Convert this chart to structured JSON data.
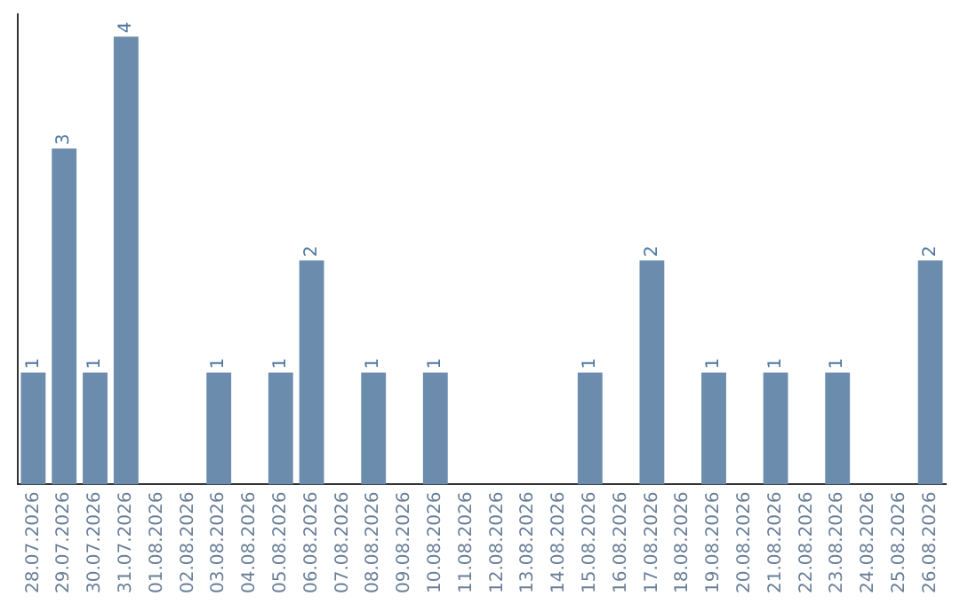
{
  "chart_data": {
    "type": "bar",
    "categories": [
      "28.07.2026",
      "29.07.2026",
      "30.07.2026",
      "31.07.2026",
      "01.08.2026",
      "02.08.2026",
      "03.08.2026",
      "04.08.2026",
      "05.08.2026",
      "06.08.2026",
      "07.08.2026",
      "08.08.2026",
      "09.08.2026",
      "10.08.2026",
      "11.08.2026",
      "12.08.2026",
      "13.08.2026",
      "14.08.2026",
      "15.08.2026",
      "16.08.2026",
      "17.08.2026",
      "18.08.2026",
      "19.08.2026",
      "20.08.2026",
      "21.08.2026",
      "22.08.2026",
      "23.08.2026",
      "24.08.2026",
      "25.08.2026",
      "26.08.2026"
    ],
    "values": [
      1,
      3,
      1,
      4,
      0,
      0,
      1,
      0,
      1,
      2,
      0,
      1,
      0,
      1,
      0,
      0,
      0,
      0,
      1,
      0,
      2,
      0,
      1,
      0,
      1,
      0,
      1,
      0,
      0,
      2
    ],
    "value_labels": [
      "1",
      "3",
      "1",
      "4",
      null,
      null,
      "1",
      null,
      "1",
      "2",
      null,
      "1",
      null,
      "1",
      null,
      null,
      null,
      null,
      "1",
      null,
      "2",
      null,
      "1",
      null,
      "1",
      null,
      "1",
      null,
      null,
      "2"
    ],
    "color": "#6b8cad",
    "ylim": [
      0,
      4.2
    ],
    "tick_labels": "x",
    "grid": false,
    "legend": false
  }
}
